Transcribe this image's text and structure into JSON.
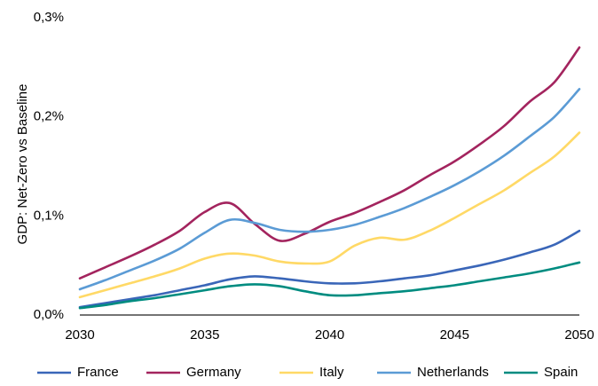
{
  "chart_data": {
    "type": "line",
    "title": "",
    "xlabel": "",
    "ylabel": "GDP: Net-Zero vs Baseline",
    "xlim": [
      2030,
      2050
    ],
    "ylim": [
      0,
      0.3
    ],
    "xticks": [
      2030,
      2035,
      2040,
      2045,
      2050
    ],
    "xtick_labels": [
      "2030",
      "2035",
      "2040",
      "2045",
      "2050"
    ],
    "yticks": [
      0,
      0.1,
      0.2,
      0.3
    ],
    "ytick_labels": [
      "0,0%",
      "0,1%",
      "0,2%",
      "0,3%"
    ],
    "grid": false,
    "legend_position": "bottom",
    "x": [
      2030,
      2031,
      2032,
      2033,
      2034,
      2035,
      2036,
      2037,
      2038,
      2039,
      2040,
      2041,
      2042,
      2043,
      2044,
      2045,
      2046,
      2047,
      2048,
      2049,
      2050
    ],
    "series": [
      {
        "name": "France",
        "color": "#3A66B8",
        "values": [
          0.008,
          0.012,
          0.016,
          0.02,
          0.025,
          0.03,
          0.036,
          0.039,
          0.037,
          0.034,
          0.032,
          0.032,
          0.034,
          0.037,
          0.04,
          0.045,
          0.05,
          0.056,
          0.063,
          0.071,
          0.085
        ]
      },
      {
        "name": "Germany",
        "color": "#A3245E",
        "values": [
          0.037,
          0.048,
          0.059,
          0.071,
          0.085,
          0.104,
          0.113,
          0.092,
          0.075,
          0.082,
          0.094,
          0.103,
          0.114,
          0.126,
          0.141,
          0.155,
          0.172,
          0.191,
          0.215,
          0.235,
          0.27
        ]
      },
      {
        "name": "Italy",
        "color": "#FFD966",
        "values": [
          0.018,
          0.025,
          0.032,
          0.039,
          0.047,
          0.057,
          0.062,
          0.06,
          0.054,
          0.052,
          0.054,
          0.07,
          0.078,
          0.076,
          0.085,
          0.098,
          0.112,
          0.126,
          0.143,
          0.16,
          0.184
        ]
      },
      {
        "name": "Netherlands",
        "color": "#5B9BD5",
        "values": [
          0.026,
          0.035,
          0.045,
          0.055,
          0.067,
          0.083,
          0.096,
          0.093,
          0.086,
          0.084,
          0.086,
          0.091,
          0.099,
          0.108,
          0.119,
          0.131,
          0.145,
          0.161,
          0.18,
          0.2,
          0.228
        ]
      },
      {
        "name": "Spain",
        "color": "#008C80",
        "values": [
          0.007,
          0.01,
          0.014,
          0.017,
          0.021,
          0.025,
          0.029,
          0.031,
          0.029,
          0.024,
          0.02,
          0.02,
          0.022,
          0.024,
          0.027,
          0.03,
          0.034,
          0.038,
          0.042,
          0.047,
          0.053
        ]
      }
    ]
  }
}
